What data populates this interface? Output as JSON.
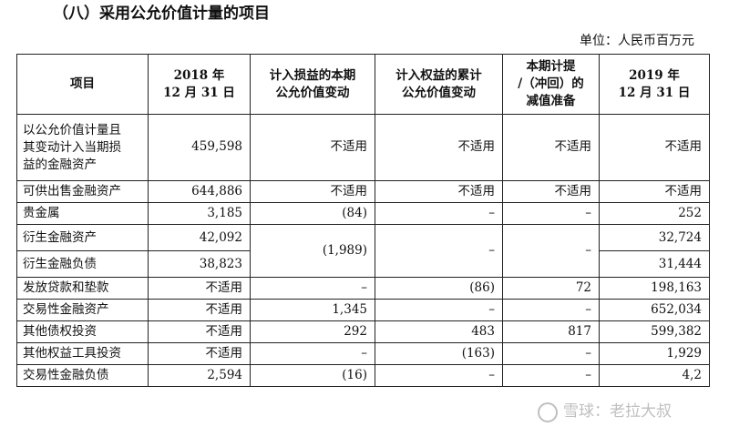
{
  "heading": "（八）采用公允价值计量的项目",
  "unit": "单位：人民币百万元",
  "columns": {
    "item": "项目",
    "c2018_a": "2018 年",
    "c2018_b": "12 月 31 日",
    "pl_a": "计入损益的本期",
    "pl_b": "公允价值变动",
    "eq_a": "计入权益的累计",
    "eq_b": "公允价值变动",
    "imp_a": "本期计提",
    "imp_b": "/（冲回）的",
    "imp_c": "减值准备",
    "c2019_a": "2019 年",
    "c2019_b": "12 月 31 日"
  },
  "rows": [
    {
      "name_lines": [
        "以公允价值计量且",
        "其变动计入当期损",
        "益的金融资产"
      ],
      "v2018": "459,598",
      "pl": "不适用",
      "eq": "不适用",
      "imp": "不适用",
      "v2019": "不适用"
    },
    {
      "name": "可供出售金融资产",
      "v2018": "644,886",
      "pl": "不适用",
      "eq": "不适用",
      "imp": "不适用",
      "v2019": "不适用"
    },
    {
      "name": "贵金属",
      "v2018": "3,185",
      "pl": "(84)",
      "eq": "–",
      "imp": "–",
      "v2019": "252"
    },
    {
      "name": "衍生金融资产",
      "v2018": "42,092",
      "pl": "(1,989)",
      "eq": "–",
      "imp": "–",
      "v2019": "32,724"
    },
    {
      "name": "衍生金融负债",
      "v2018": "38,823",
      "v2019": "31,444"
    },
    {
      "name": "发放贷款和垫款",
      "v2018": "不适用",
      "pl": "–",
      "eq": "(86)",
      "imp": "72",
      "v2019": "198,163"
    },
    {
      "name": "交易性金融资产",
      "v2018": "不适用",
      "pl": "1,345",
      "eq": "–",
      "imp": "–",
      "v2019": "652,034"
    },
    {
      "name": "其他债权投资",
      "v2018": "不适用",
      "pl": "292",
      "eq": "483",
      "imp": "817",
      "v2019": "599,382"
    },
    {
      "name": "其他权益工具投资",
      "v2018": "不适用",
      "pl": "–",
      "eq": "(163)",
      "imp": "–",
      "v2019": "1,929"
    },
    {
      "name": "交易性金融负债",
      "v2018": "2,594",
      "pl": "(16)",
      "eq": "–",
      "imp": "–",
      "v2019": "4,2"
    }
  ],
  "watermark": "雪球：老拉大叔"
}
